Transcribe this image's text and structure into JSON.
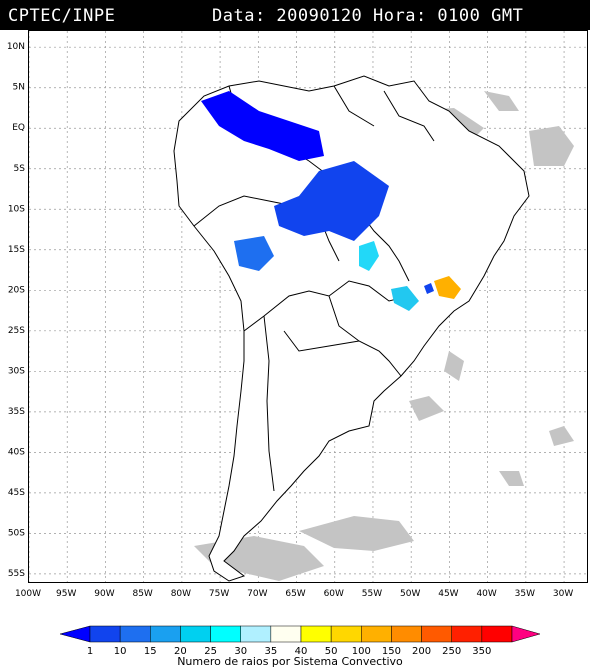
{
  "header": {
    "source": "CPTEC/INPE",
    "datetime": "Data: 20090120 Hora: 0100 GMT"
  },
  "map": {
    "lat_labels": [
      "10N",
      "5N",
      "EQ",
      "5S",
      "10S",
      "15S",
      "20S",
      "25S",
      "30S",
      "35S",
      "40S",
      "45S",
      "50S",
      "55S"
    ],
    "lon_labels": [
      "100W",
      "95W",
      "90W",
      "85W",
      "80W",
      "75W",
      "70W",
      "65W",
      "60W",
      "55W",
      "50W",
      "45W",
      "40W",
      "35W",
      "30W"
    ],
    "extent": {
      "lon_min": -100,
      "lon_max": -27,
      "lat_max": 12,
      "lat_min": -56
    },
    "gridlines": true,
    "colors": {
      "land_border": "#000000",
      "cloud_gray": "#c0c0c0",
      "ocean": "#ffffff"
    }
  },
  "colorbar": {
    "ticks": [
      "1",
      "10",
      "15",
      "20",
      "25",
      "30",
      "35",
      "40",
      "50",
      "100",
      "150",
      "200",
      "250",
      "350"
    ],
    "colors": [
      "#0000ff",
      "#1144ee",
      "#1e6ff0",
      "#1aa0f0",
      "#00d0f0",
      "#00ffff",
      "#b0f0ff",
      "#fffff0",
      "#ffff00",
      "#ffd700",
      "#ffb000",
      "#ff8c00",
      "#ff5a00",
      "#ff2000",
      "#ff0000",
      "#ff0080"
    ],
    "title": "Numero de raios por Sistema Convectivo"
  },
  "systems": [
    {
      "name": "amazon-north",
      "count_class": "1",
      "color": "#0000ff"
    },
    {
      "name": "central-brazil",
      "count_class": "10",
      "color": "#1144ee"
    },
    {
      "name": "bolivia",
      "count_class": "10",
      "color": "#1144ee"
    },
    {
      "name": "goias",
      "count_class": "25",
      "color": "#00ffff"
    },
    {
      "name": "parana",
      "count_class": "25",
      "color": "#00d0f0"
    },
    {
      "name": "minas-gerais",
      "count_class": "100",
      "color": "#ffb000"
    }
  ]
}
